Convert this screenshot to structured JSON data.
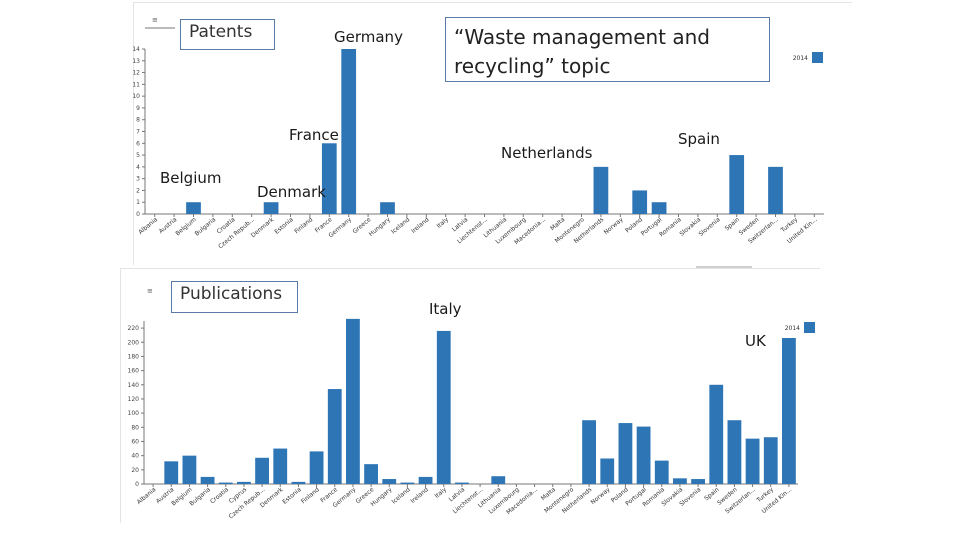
{
  "chart_data": [
    {
      "type": "bar",
      "title": "Patents",
      "legend": "2014",
      "ylim": [
        0,
        14
      ],
      "yticks": [
        "0",
        "1",
        "2",
        "3",
        "4",
        "5",
        "6",
        "7",
        "8",
        "9",
        "10",
        "11",
        "12",
        "13",
        "14"
      ],
      "categories": [
        "Albania",
        "Austria",
        "Belgium",
        "Bulgaria",
        "Croatia",
        "Czech Repub...",
        "Denmark",
        "Estonia",
        "Finland",
        "France",
        "Germany",
        "Greece",
        "Hungary",
        "Iceland",
        "Ireland",
        "Italy",
        "Latvia",
        "Liechtenst...",
        "Lithuania",
        "Luxembourg",
        "Macedonia...",
        "Malta",
        "Montenegro",
        "Netherlands",
        "Norway",
        "Poland",
        "Portugal",
        "Romania",
        "Slovakia",
        "Slovenia",
        "Spain",
        "Sweden",
        "Switzerlan...",
        "Turkey",
        "United Kin..."
      ],
      "values": [
        0,
        0,
        1,
        0,
        0,
        0,
        1,
        0,
        0,
        6,
        14,
        0,
        1,
        0,
        0,
        0,
        0,
        0,
        0,
        0,
        0,
        0,
        0,
        4,
        0,
        2,
        1,
        0,
        0,
        0,
        5,
        0,
        4,
        0,
        0
      ]
    },
    {
      "type": "bar",
      "title": "Publications",
      "legend": "2014",
      "ylim": [
        0,
        230
      ],
      "yticks": [
        "0",
        "20",
        "40",
        "60",
        "80",
        "100",
        "120",
        "140",
        "160",
        "180",
        "200",
        "220"
      ],
      "categories": [
        "Albania",
        "Austria",
        "Belgium",
        "Bulgaria",
        "Croatia",
        "Cyprus",
        "Czech Repub...",
        "Denmark",
        "Estonia",
        "Finland",
        "France",
        "Germany",
        "Greece",
        "Hungary",
        "Iceland",
        "Ireland",
        "Italy",
        "Latvia",
        "Liechtenst...",
        "Lithuania",
        "Luxembourg",
        "Macedonia...",
        "Malta",
        "Montenegro",
        "Netherlands",
        "Norway",
        "Poland",
        "Portugal",
        "Romania",
        "Slovakia",
        "Slovenia",
        "Spain",
        "Sweden",
        "Switzerlan...",
        "Turkey",
        "United Kin..."
      ],
      "values": [
        0,
        32,
        40,
        10,
        2,
        3,
        37,
        50,
        3,
        46,
        134,
        233,
        28,
        7,
        2,
        10,
        216,
        2,
        0,
        11,
        0,
        0,
        0,
        0,
        90,
        36,
        86,
        81,
        33,
        8,
        7,
        140,
        90,
        64,
        66,
        206
      ]
    }
  ],
  "callouts": {
    "topic_line1": "“Waste management and",
    "topic_line2": "recycling” topic",
    "germany": "Germany",
    "france": "France",
    "belgium": "Belgium",
    "denmark": "Denmark",
    "netherlands": "Netherlands",
    "spain": "Spain",
    "italy": "Italy",
    "uk": "UK"
  },
  "menu_glyph": "≡",
  "colors": {
    "bar": "#2e75b6",
    "axis": "#777777"
  }
}
